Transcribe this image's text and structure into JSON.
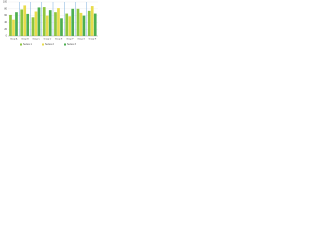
{
  "chart_data": {
    "type": "bar",
    "categories": [
      "Group A",
      "Group B",
      "Group C",
      "Group D",
      "Group E",
      "Group F",
      "Group G",
      "Group H"
    ],
    "series": [
      {
        "name": "Series 1",
        "color": "#8cc63f",
        "values": [
          62,
          78,
          55,
          85,
          70,
          66,
          80,
          74
        ]
      },
      {
        "name": "Series 2",
        "color": "#e8dc4c",
        "values": [
          48,
          90,
          72,
          60,
          82,
          58,
          68,
          88
        ]
      },
      {
        "name": "Series 3",
        "color": "#4caf50",
        "values": [
          70,
          65,
          84,
          76,
          52,
          80,
          60,
          66
        ]
      }
    ],
    "ylim": [
      0,
      100
    ],
    "yticks": [
      0,
      20,
      40,
      60,
      80,
      100
    ],
    "grid": true
  }
}
